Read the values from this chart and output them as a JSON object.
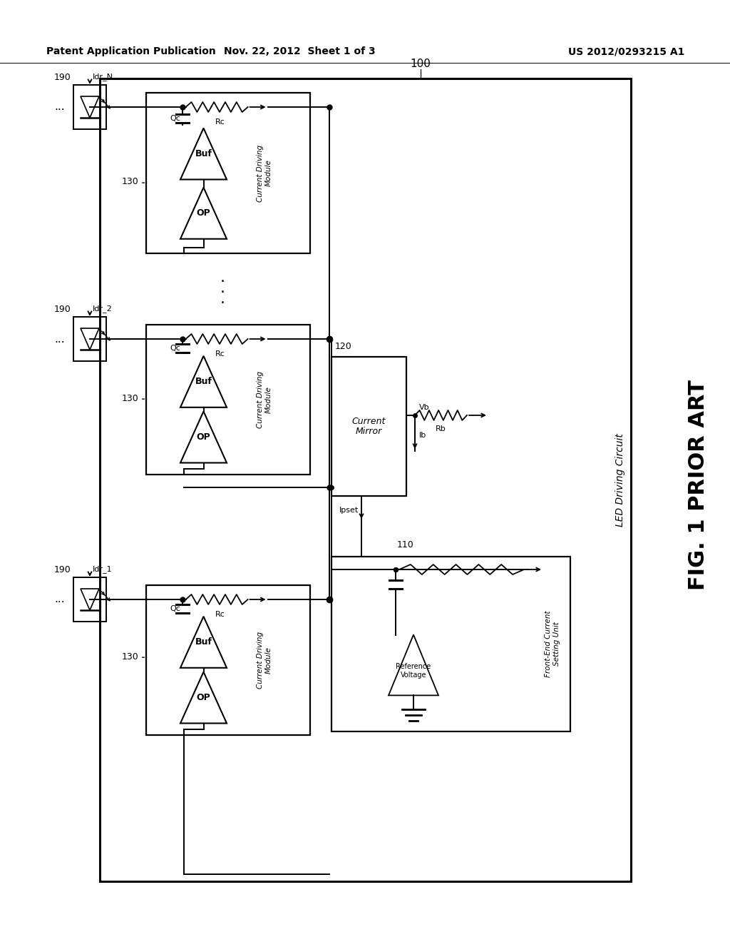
{
  "bg_color": "#ffffff",
  "header_left": "Patent Application Publication",
  "header_mid": "Nov. 22, 2012  Sheet 1 of 3",
  "header_right": "US 2012/0293215 A1",
  "fig_label": "FIG. 1 PRIOR ART"
}
